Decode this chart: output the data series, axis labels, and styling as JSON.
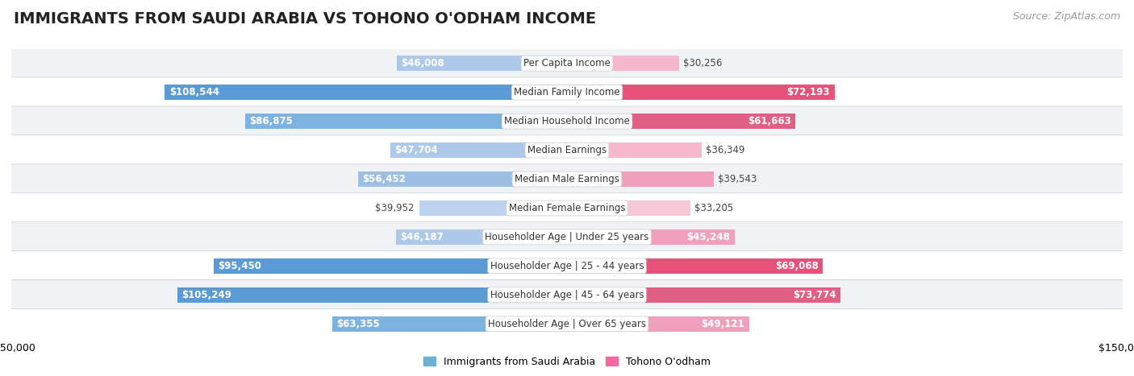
{
  "title": "IMMIGRANTS FROM SAUDI ARABIA VS TOHONO O'ODHAM INCOME",
  "source": "Source: ZipAtlas.com",
  "categories": [
    "Per Capita Income",
    "Median Family Income",
    "Median Household Income",
    "Median Earnings",
    "Median Male Earnings",
    "Median Female Earnings",
    "Householder Age | Under 25 years",
    "Householder Age | 25 - 44 years",
    "Householder Age | 45 - 64 years",
    "Householder Age | Over 65 years"
  ],
  "saudi_values": [
    46008,
    108544,
    86875,
    47704,
    56452,
    39952,
    46187,
    95450,
    105249,
    63355
  ],
  "tohono_values": [
    30256,
    72193,
    61663,
    36349,
    39543,
    33205,
    45248,
    69068,
    73774,
    49121
  ],
  "saudi_colors": [
    "#adc8e8",
    "#5b9bd5",
    "#7cb3e0",
    "#adc8e8",
    "#9dbfe4",
    "#bdd2ec",
    "#adc8e8",
    "#5b9bd5",
    "#5b9bd5",
    "#7cb3e0"
  ],
  "tohono_colors": [
    "#f5b8cc",
    "#e8527a",
    "#e05f82",
    "#f5b8cc",
    "#f0a0bc",
    "#f7c8d8",
    "#f0a0bc",
    "#e8527a",
    "#e05f82",
    "#f0a0bc"
  ],
  "row_bg_even": "#f0f2f5",
  "row_bg_odd": "#ffffff",
  "max_val": 150000,
  "label_saudi_text": "Immigrants from Saudi Arabia",
  "label_tohono_text": "Tohono O'odham",
  "title_fontsize": 14,
  "source_fontsize": 9,
  "bar_height": 0.52,
  "value_fontsize": 8.5,
  "category_fontsize": 8.5,
  "legend_fontsize": 9,
  "axis_label_fontsize": 9,
  "legend_saudi_color": "#6baed6",
  "legend_tohono_color": "#f768a1"
}
